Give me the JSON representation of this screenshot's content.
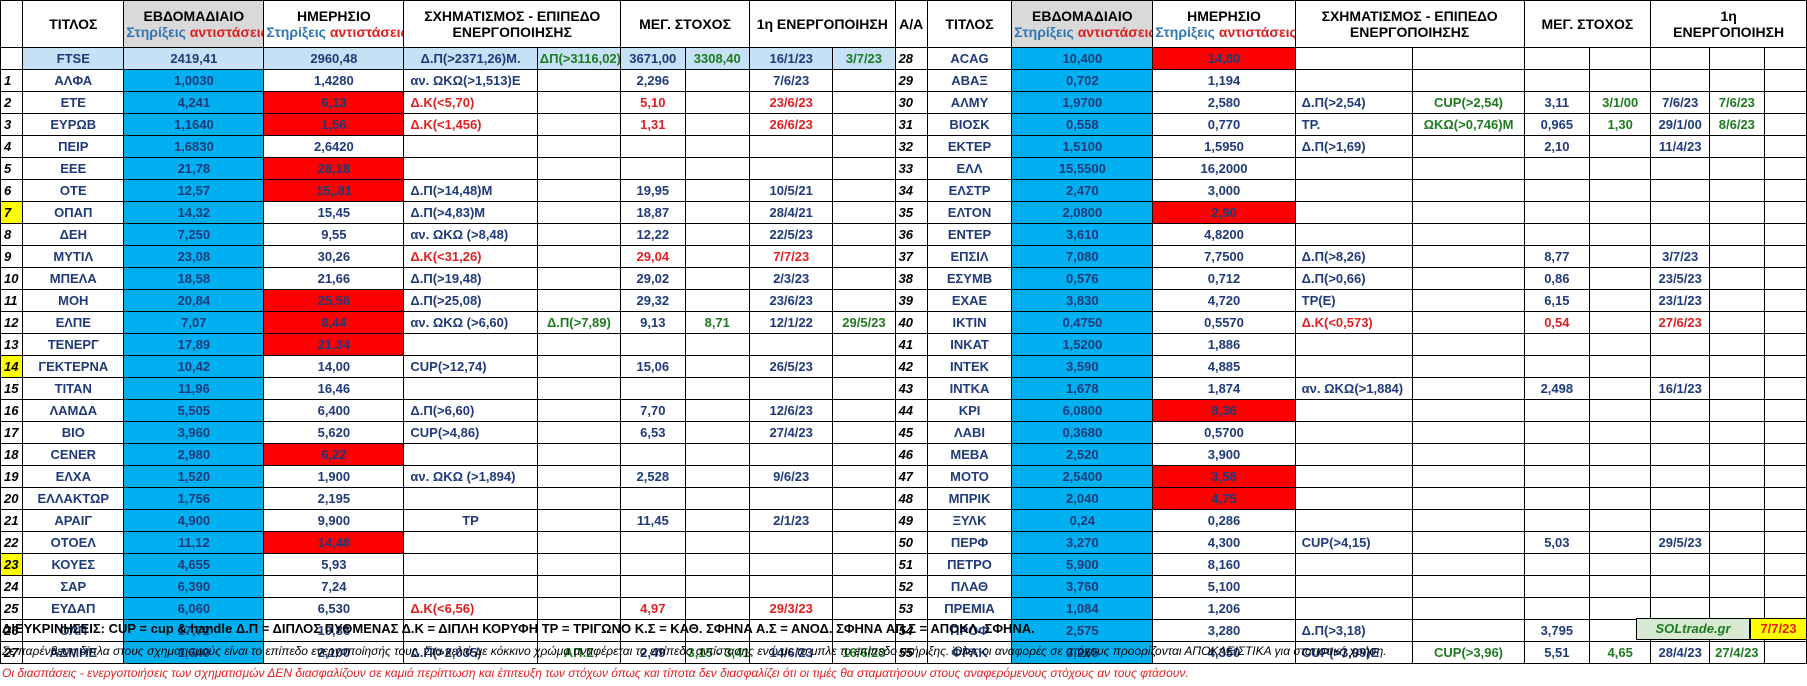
{
  "header": {
    "titlos": "ΤΙΤΛΟΣ",
    "weekly": "ΕΒΔΟΜΑΔΙΑΙΟ",
    "daily": "ΗΜΕΡΗΣΙΟ",
    "supports": "Στηρίξεις",
    "resistances": "αντιστάσεις",
    "pattern_line1": "ΣΧΗΜΑΤΙΣΜΟΣ - ΕΠΙΠΕΔΟ",
    "pattern_line2": "ΕΝΕΡΓΟΠΟΙΗΣΗΣ",
    "target": "ΜΕΓ. ΣΤΟΧΟΣ",
    "activation": "1η ΕΝΕΡΓΟΠΟΙΗΣΗ",
    "aa": "Α/Α",
    "right_activation_line1": "1η",
    "right_activation_line2": "ΕΝΕΡΓΟΠΟΙΗΣΗ"
  },
  "ftse_row": {
    "name": "FTSE",
    "weekly": "2419,41",
    "daily": "2960,48",
    "p1": "Δ.Π(>2371,26)Μ.",
    "p2": "ΔΠ(>3116,02)",
    "t1": "3671,00",
    "t2": "3308,40",
    "d1": "16/1/23",
    "d2": "3/7/23"
  },
  "rows": [
    {
      "left": {
        "n": "1",
        "name": "ΑΛΦΑ",
        "w": "1,0030",
        "d": "1,4280",
        "dred": false,
        "p1": "αν. ΩΚΩ(>1,513)Ε",
        "p1c": "n",
        "p2": "",
        "t1": "2,296",
        "t2": "",
        "a1": "7/6/23",
        "a1c": "n",
        "a2": ""
      },
      "right": {
        "n": "29",
        "name": "ΑΒΑΞ",
        "w": "0,702",
        "d": "1,194",
        "dred": false,
        "p1": "",
        "p1c": "n",
        "p2": "",
        "t1": "",
        "t1c": "n",
        "t2": "",
        "a1": "",
        "a1c": "n",
        "a2": ""
      }
    },
    {
      "left": {
        "n": "2",
        "name": "ΕΤΕ",
        "w": "4,241",
        "d": "6,13",
        "dred": true,
        "p1": "Δ.Κ(<5,70)",
        "p1c": "r",
        "p2": "",
        "t1": "5,10",
        "t1c": "r",
        "t2": "",
        "a1": "23/6/23",
        "a1c": "r",
        "a2": ""
      },
      "right": {
        "n": "30",
        "name": "ΑΛΜΥ",
        "w": "1,9700",
        "d": "2,580",
        "dred": false,
        "p1": "Δ.Π(>2,54)",
        "p1c": "n",
        "p2": "CUP(>2,54)",
        "t1": "3,11",
        "t1c": "n",
        "t2": "3/1/00",
        "a1": "7/6/23",
        "a1c": "n",
        "a2": "7/6/23"
      }
    },
    {
      "left": {
        "n": "3",
        "name": "ΕΥΡΩΒ",
        "w": "1,1640",
        "d": "1,56",
        "dred": true,
        "p1": "Δ.Κ(<1,456)",
        "p1c": "r",
        "p2": "",
        "t1": "1,31",
        "t1c": "r",
        "t2": "",
        "a1": "26/6/23",
        "a1c": "r",
        "a2": ""
      },
      "right": {
        "n": "31",
        "name": "ΒΙΟΣΚ",
        "w": "0,558",
        "d": "0,770",
        "dred": false,
        "p1": "ΤΡ.",
        "p1c": "n",
        "p2": "ΩΚΩ(>0,746)Μ",
        "t1": "0,965",
        "t1c": "n",
        "t2": "1,30",
        "a1": "29/1/00",
        "a1c": "n",
        "a2": "8/6/23"
      }
    },
    {
      "left": {
        "n": "4",
        "name": "ΠΕΙΡ",
        "w": "1,6830",
        "d": "2,6420",
        "dred": false,
        "p1": "",
        "p1c": "n",
        "p2": "",
        "t1": "",
        "t2": "",
        "a1": "",
        "a1c": "n",
        "a2": ""
      },
      "right": {
        "n": "32",
        "name": "ΕΚΤΕΡ",
        "w": "1,5100",
        "d": "1,5950",
        "dred": false,
        "p1": "Δ.Π(>1,69)",
        "p1c": "n",
        "p2": "",
        "t1": "2,10",
        "t1c": "n",
        "t2": "",
        "a1": "11/4/23",
        "a1c": "n",
        "a2": ""
      }
    },
    {
      "left": {
        "n": "5",
        "name": "ΕΕΕ",
        "w": "21,78",
        "d": "28,18",
        "dred": true,
        "p1": "",
        "p1c": "n",
        "p2": "",
        "t1": "",
        "t2": "",
        "a1": "",
        "a1c": "n",
        "a2": ""
      },
      "right": {
        "n": "33",
        "name": "ΕΛΛ",
        "w": "15,5500",
        "d": "16,2000",
        "dred": false,
        "p1": "",
        "p1c": "n",
        "p2": "",
        "t1": "",
        "t1c": "n",
        "t2": "",
        "a1": "",
        "a1c": "n",
        "a2": ""
      }
    },
    {
      "left": {
        "n": "6",
        "name": "ΟΤΕ",
        "w": "12,57",
        "d": "15,,81",
        "dred": true,
        "p1": "Δ.Π(>14,48)Μ",
        "p1c": "n",
        "p2": "",
        "t1": "19,95",
        "t2": "",
        "a1": "10/5/21",
        "a1c": "n",
        "a2": ""
      },
      "right": {
        "n": "34",
        "name": "ΕΛΣΤΡ",
        "w": "2,470",
        "d": "3,000",
        "dred": false,
        "p1": "",
        "p1c": "n",
        "p2": "",
        "t1": "",
        "t1c": "n",
        "t2": "",
        "a1": "",
        "a1c": "n",
        "a2": ""
      }
    },
    {
      "left": {
        "n": "7",
        "ny": true,
        "name": "ΟΠΑΠ",
        "w": "14,32",
        "d": "15,45",
        "dred": false,
        "p1": "Δ.Π(>4,83)Μ",
        "p1c": "n",
        "p2": "",
        "t1": "18,87",
        "t2": "",
        "a1": "28/4/21",
        "a1c": "n",
        "a2": ""
      },
      "right": {
        "n": "35",
        "name": "ΕΛΤΟΝ",
        "w": "2,0800",
        "d": "2,90",
        "dred": true,
        "p1": "",
        "p1c": "n",
        "p2": "",
        "t1": "",
        "t1c": "n",
        "t2": "",
        "a1": "",
        "a1c": "n",
        "a2": ""
      }
    },
    {
      "left": {
        "n": "8",
        "name": "ΔΕΗ",
        "w": "7,250",
        "d": "9,55",
        "dred": false,
        "p1": "αν. ΩΚΩ (>8,48)",
        "p1c": "n",
        "p2": "",
        "t1": "12,22",
        "t2": "",
        "a1": "22/5/23",
        "a1c": "n",
        "a2": ""
      },
      "right": {
        "n": "36",
        "name": "ΕΝΤΕΡ",
        "w": "3,610",
        "d": "4,8200",
        "dred": false,
        "p1": "",
        "p1c": "n",
        "p2": "",
        "t1": "",
        "t1c": "n",
        "t2": "",
        "a1": "",
        "a1c": "n",
        "a2": ""
      }
    },
    {
      "left": {
        "n": "9",
        "name": "ΜΥΤΙΛ",
        "w": "23,08",
        "d": "30,26",
        "dred": false,
        "p1": "Δ.Κ(<31,26)",
        "p1c": "r",
        "p2": "",
        "t1": "29,04",
        "t1c": "r",
        "t2": "",
        "a1": "7/7/23",
        "a1c": "r",
        "a2": ""
      },
      "right": {
        "n": "37",
        "name": "ΕΠΣΙΛ",
        "w": "7,080",
        "d": "7,7500",
        "dred": false,
        "p1": "Δ.Π(>8,26)",
        "p1c": "n",
        "p2": "",
        "t1": "8,77",
        "t1c": "n",
        "t2": "",
        "a1": "3/7/23",
        "a1c": "n",
        "a2": ""
      }
    },
    {
      "left": {
        "n": "10",
        "name": "ΜΠΕΛΑ",
        "w": "18,58",
        "d": "21,66",
        "dred": false,
        "p1": "Δ.Π(>19,48)",
        "p1c": "n",
        "p2": "",
        "t1": "29,02",
        "t2": "",
        "a1": "2/3/23",
        "a1c": "n",
        "a2": ""
      },
      "right": {
        "n": "38",
        "name": "ΕΣΥΜΒ",
        "w": "0,576",
        "d": "0,712",
        "dred": false,
        "p1": "Δ.Π(>0,66)",
        "p1c": "n",
        "p2": "",
        "t1": "0,86",
        "t1c": "n",
        "t2": "",
        "a1": "23/5/23",
        "a1c": "n",
        "a2": ""
      }
    },
    {
      "left": {
        "n": "11",
        "name": "ΜΟΗ",
        "w": "20,84",
        "d": "25,56",
        "dred": true,
        "p1": "Δ.Π(>25,08)",
        "p1c": "n",
        "p2": "",
        "t1": "29,32",
        "t2": "",
        "a1": "23/6/23",
        "a1c": "n",
        "a2": ""
      },
      "right": {
        "n": "39",
        "name": "ΕΧΑΕ",
        "w": "3,830",
        "d": "4,720",
        "dred": false,
        "p1": "ΤΡ(Ε)",
        "p1c": "n",
        "p2": "",
        "t1": "6,15",
        "t1c": "n",
        "t2": "",
        "a1": "23/1/23",
        "a1c": "n",
        "a2": ""
      }
    },
    {
      "left": {
        "n": "12",
        "name": "ΕΛΠΕ",
        "w": "7,07",
        "d": "8,44",
        "dred": true,
        "p1": "αν. ΩΚΩ (>6,60)",
        "p1c": "n",
        "p2": "Δ.Π(>7,89)",
        "t1": "9,13",
        "t2": "8,71",
        "a1": "12/1/22",
        "a1c": "n",
        "a2": "29/5/23"
      },
      "right": {
        "n": "40",
        "name": "ΙΚΤΙΝ",
        "w": "0,4750",
        "d": "0,5570",
        "dred": false,
        "p1": "Δ.Κ(<0,573)",
        "p1c": "r",
        "p2": "",
        "t1": "0,54",
        "t1c": "r",
        "t2": "",
        "a1": "27/6/23",
        "a1c": "r",
        "a2": ""
      }
    },
    {
      "left": {
        "n": "13",
        "name": "ΤΕΝΕΡΓ",
        "w": "17,89",
        "d": "21,34",
        "dred": true,
        "p1": "",
        "p1c": "n",
        "p2": "",
        "t1": "",
        "t2": "",
        "a1": "",
        "a1c": "n",
        "a2": ""
      },
      "right": {
        "n": "41",
        "name": "ΙΝΚΑΤ",
        "w": "1,5200",
        "d": "1,886",
        "dred": false,
        "p1": "",
        "p1c": "n",
        "p2": "",
        "t1": "",
        "t1c": "n",
        "t2": "",
        "a1": "",
        "a1c": "n",
        "a2": ""
      }
    },
    {
      "left": {
        "n": "14",
        "ny": true,
        "name": "ΓΕΚΤΕΡΝΑ",
        "w": "10,42",
        "d": "14,00",
        "dred": false,
        "p1": "CUP(>12,74)",
        "p1c": "n",
        "p2": "",
        "t1": "15,06",
        "t2": "",
        "a1": "26/5/23",
        "a1c": "n",
        "a2": ""
      },
      "right": {
        "n": "42",
        "name": "ΙΝΤΕΚ",
        "w": "3,590",
        "d": "4,885",
        "dred": false,
        "p1": "",
        "p1c": "n",
        "p2": "",
        "t1": "",
        "t1c": "n",
        "t2": "",
        "a1": "",
        "a1c": "n",
        "a2": ""
      }
    },
    {
      "left": {
        "n": "15",
        "name": "ΤΙΤΑΝ",
        "w": "11,96",
        "d": "16,46",
        "dred": false,
        "p1": "",
        "p1c": "n",
        "p2": "",
        "t1": "",
        "t2": "",
        "a1": "",
        "a1c": "n",
        "a2": ""
      },
      "right": {
        "n": "43",
        "name": "ΙΝΤΚΑ",
        "w": "1,678",
        "d": "1,874",
        "dred": false,
        "p1": "αν. ΩΚΩ(>1,884)",
        "p1c": "n",
        "p2": "",
        "t1": "2,498",
        "t1c": "n",
        "t2": "",
        "a1": "16/1/23",
        "a1c": "n",
        "a2": ""
      }
    },
    {
      "left": {
        "n": "16",
        "name": "ΛΑΜΔΑ",
        "w": "5,505",
        "d": "6,400",
        "dred": false,
        "p1": "Δ.Π(>6,60)",
        "p1c": "n",
        "p2": "",
        "t1": "7,70",
        "t2": "",
        "a1": "12/6/23",
        "a1c": "n",
        "a2": ""
      },
      "right": {
        "n": "44",
        "name": "ΚΡΙ",
        "w": "6,0800",
        "d": "8,36",
        "dred": true,
        "p1": "",
        "p1c": "n",
        "p2": "",
        "t1": "",
        "t1c": "n",
        "t2": "",
        "a1": "",
        "a1c": "n",
        "a2": ""
      }
    },
    {
      "left": {
        "n": "17",
        "name": "ΒΙΟ",
        "w": "3,960",
        "d": "5,620",
        "dred": false,
        "p1": "CUP(>4,86)",
        "p1c": "n",
        "p2": "",
        "t1": "6,53",
        "t2": "",
        "a1": "27/4/23",
        "a1c": "n",
        "a2": ""
      },
      "right": {
        "n": "45",
        "name": "ΛΑΒΙ",
        "w": "0,3680",
        "d": "0,5700",
        "dred": false,
        "p1": "",
        "p1c": "n",
        "p2": "",
        "t1": "",
        "t1c": "n",
        "t2": "",
        "a1": "",
        "a1c": "n",
        "a2": ""
      }
    },
    {
      "left": {
        "n": "18",
        "name": "CENER",
        "w": "2,980",
        "d": "6,22",
        "dred": true,
        "p1": "",
        "p1c": "n",
        "p2": "",
        "t1": "",
        "t2": "",
        "a1": "",
        "a1c": "n",
        "a2": ""
      },
      "right": {
        "n": "46",
        "name": "ΜΕΒΑ",
        "w": "2,520",
        "d": "3,900",
        "dred": false,
        "p1": "",
        "p1c": "n",
        "p2": "",
        "t1": "",
        "t1c": "n",
        "t2": "",
        "a1": "",
        "a1c": "n",
        "a2": ""
      }
    },
    {
      "left": {
        "n": "19",
        "name": "ΕΛΧΑ",
        "w": "1,520",
        "d": "1,900",
        "dred": false,
        "p1": "αν. ΩΚΩ (>1,894)",
        "p1c": "n",
        "p2": "",
        "t1": "2,528",
        "t2": "",
        "a1": "9/6/23",
        "a1c": "n",
        "a2": ""
      },
      "right": {
        "n": "47",
        "name": "ΜΟΤΟ",
        "w": "2,5400",
        "d": "3,58",
        "dred": true,
        "p1": "",
        "p1c": "n",
        "p2": "",
        "t1": "",
        "t1c": "n",
        "t2": "",
        "a1": "",
        "a1c": "n",
        "a2": ""
      }
    },
    {
      "left": {
        "n": "20",
        "name": "ΕΛΛΑΚΤΩΡ",
        "w": "1,756",
        "d": "2,195",
        "dred": false,
        "p1": "",
        "p1c": "n",
        "p2": "",
        "t1": "",
        "t2": "",
        "a1": "",
        "a1c": "n",
        "a2": ""
      },
      "right": {
        "n": "48",
        "name": "ΜΠΡΙΚ",
        "w": "2,040",
        "d": "4,75",
        "dred": true,
        "p1": "",
        "p1c": "n",
        "p2": "",
        "t1": "",
        "t1c": "n",
        "t2": "",
        "a1": "",
        "a1c": "n",
        "a2": ""
      }
    },
    {
      "left": {
        "n": "21",
        "name": "ΑΡΑΙΓ",
        "w": "4,900",
        "d": "9,900",
        "dred": false,
        "p1": "ΤΡ",
        "p1c": "n",
        "p1center": true,
        "p2": "",
        "t1": "11,45",
        "t2": "",
        "a1": "2/1/23",
        "a1c": "n",
        "a2": ""
      },
      "right": {
        "n": "49",
        "name": "ΞΥΛΚ",
        "w": "0,24",
        "d": "0,286",
        "dred": false,
        "p1": "",
        "p1c": "n",
        "p2": "",
        "t1": "",
        "t1c": "n",
        "t2": "",
        "a1": "",
        "a1c": "n",
        "a2": ""
      }
    },
    {
      "left": {
        "n": "22",
        "name": "ΟΤΟΕΛ",
        "w": "11,12",
        "d": "14,48",
        "dred": true,
        "p1": "",
        "p1c": "n",
        "p2": "",
        "t1": "",
        "t2": "",
        "a1": "",
        "a1c": "n",
        "a2": ""
      },
      "right": {
        "n": "50",
        "name": "ΠΕΡΦ",
        "w": "3,270",
        "d": "4,300",
        "dred": false,
        "p1": "CUP(>4,15)",
        "p1c": "n",
        "p2": "",
        "t1": "5,03",
        "t1c": "n",
        "t2": "",
        "a1": "29/5/23",
        "a1c": "n",
        "a2": ""
      }
    },
    {
      "left": {
        "n": "23",
        "ny": true,
        "name": "ΚΟΥΕΣ",
        "w": "4,655",
        "d": "5,93",
        "dred": false,
        "p1": "",
        "p1c": "n",
        "p2": "",
        "t1": "",
        "t2": "",
        "a1": "",
        "a1c": "n",
        "a2": ""
      },
      "right": {
        "n": "51",
        "name": "ΠΕΤΡΟ",
        "w": "5,900",
        "d": "8,160",
        "dred": false,
        "p1": "",
        "p1c": "n",
        "p2": "",
        "t1": "",
        "t1c": "n",
        "t2": "",
        "a1": "",
        "a1c": "n",
        "a2": ""
      }
    },
    {
      "left": {
        "n": "24",
        "name": "ΣΑΡ",
        "w": "6,390",
        "d": "7,24",
        "dred": false,
        "p1": "",
        "p1c": "n",
        "p2": "",
        "t1": "",
        "t2": "",
        "a1": "",
        "a1c": "n",
        "a2": ""
      },
      "right": {
        "n": "52",
        "name": "ΠΛΑΘ",
        "w": "3,760",
        "d": "5,100",
        "dred": false,
        "p1": "",
        "p1c": "n",
        "p2": "",
        "t1": "",
        "t1c": "n",
        "t2": "",
        "a1": "",
        "a1c": "n",
        "a2": ""
      }
    },
    {
      "left": {
        "n": "25",
        "name": "ΕΥΔΑΠ",
        "w": "6,060",
        "d": "6,530",
        "dred": false,
        "p1": "Δ.Κ(<6,56)",
        "p1c": "r",
        "p2": "",
        "t1": "4,97",
        "t1c": "r",
        "t2": "",
        "a1": "29/3/23",
        "a1c": "r",
        "a2": ""
      },
      "right": {
        "n": "53",
        "name": "ΠΡΕΜΙΑ",
        "w": "1,084",
        "d": "1,206",
        "dred": false,
        "p1": "",
        "p1c": "n",
        "p2": "",
        "t1": "",
        "t1c": "n",
        "t2": "",
        "a1": "",
        "a1c": "n",
        "a2": ""
      }
    },
    {
      "left": {
        "n": "26",
        "name": "ΟΛΠ",
        "w": "17,72",
        "d": "19,86",
        "dred": false,
        "p1": "",
        "p1c": "n",
        "p2": "",
        "t1": "",
        "t2": "",
        "a1": "",
        "a1c": "n",
        "a2": ""
      },
      "right": {
        "n": "54",
        "name": "ΠΡΟΦ",
        "w": "2,575",
        "d": "3,280",
        "dred": false,
        "p1": "Δ.Π(>3,18)",
        "p1c": "n",
        "p2": "",
        "t1": "3,795",
        "t1c": "n",
        "t2": "",
        "a1": "11/4/23",
        "a1c": "n",
        "a2": ""
      }
    },
    {
      "left": {
        "n": "27",
        "name": "ΑΔΜΗΕ",
        "w": "1,640",
        "d": "2,100",
        "dred": false,
        "p1": "Δ.Π(>2,035)",
        "p1c": "n",
        "p2": "ΑΠ.Σ",
        "t1": "2,49",
        "t2": "3,15 - 3,41",
        "a1": "14/6/23",
        "a1c": "n",
        "a2": "16/6/23"
      },
      "right": {
        "n": "55",
        "name": "ΦΡΛΚ",
        "w": "3,265",
        "d": "4,350",
        "dred": false,
        "p1": "CUP(>3,99)Ε",
        "p1c": "n",
        "p2": "CUP(>3,96)",
        "t1": "5,51",
        "t1c": "n",
        "t2": "4,65",
        "a1": "28/4/23",
        "a1c": "n",
        "a2": "27/4/23"
      }
    }
  ],
  "right_first": {
    "n": "28",
    "name": "ACAG",
    "w": "10,400",
    "d": "14,80"
  },
  "footer": {
    "legend": "ΔΙΕΥΚΡΙΝΗΣΕΙΣ: CUP = cup & handle   Δ.Π = ΔΙΠΛΟΣ ΠΥΘΜΕΝΑΣ  Δ.Κ = ΔΙΠΛΗ ΚΟΡΥΦΗ ΤΡ = ΤΡΙΓΩΝΟ  Κ.Σ = ΚΑΘ. ΣΦΗΝΑ  Α.Σ = ΑΝΟΔ. ΣΦΗΝΑ  ΑΠ.Σ = ΑΠΟΚΛ. ΣΦΗΝΑ.",
    "brand": "SOLtrade.gr",
    "date": "7/7/23",
    "note1": "Σε παρένθεση δίπλα στους σχηματισμούς είναι το επίπεδο ενεργοποίησής τους. Στα κελιά με κόκκινο χρώμα αναφέρεται το επίπεδο αντίστασης ενώ με το μπλε το επίπεδο στήριξης. Όλες οι αναφορές σε στόχους προορίζονται ΑΠΟΚΛΕΙΣΤΙΚΑ για  στατιστική χρήση.",
    "note2": "Οι διασπάσεις - ενεργοποιήσεις των σχηματισμών  ΔΕΝ διασφαλίζουν σε καμιά περίπτωση και έπιτευξη των στόχων όπως και τίποτα δεν διασφαλίζει ότι οι τιμές θα σταματήσουν στους αναφερόμενους στόχους αν τους φτάσουν."
  }
}
